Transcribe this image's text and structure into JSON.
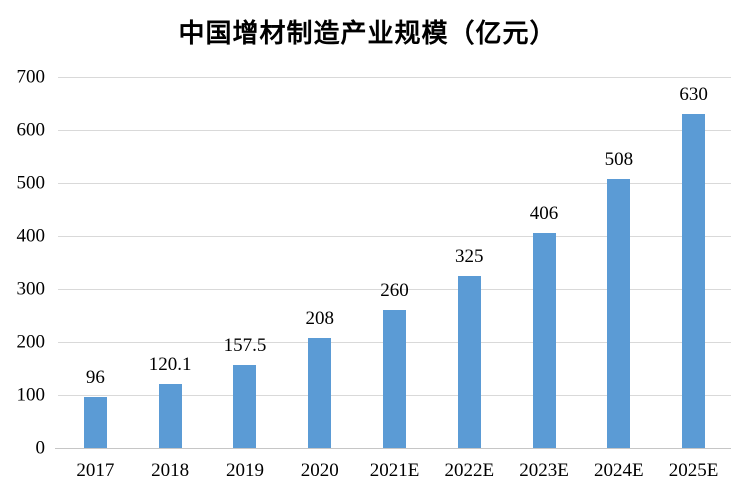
{
  "chart_data": {
    "type": "bar",
    "title": "中国增材制造产业规模（亿元）",
    "categories": [
      "2017",
      "2018",
      "2019",
      "2020",
      "2021E",
      "2022E",
      "2023E",
      "2024E",
      "2025E"
    ],
    "values": [
      96,
      120.1,
      157.5,
      208,
      260,
      325,
      406,
      508,
      630
    ],
    "value_labels": [
      "96",
      "120.1",
      "157.5",
      "208",
      "260",
      "325",
      "406",
      "508",
      "630"
    ],
    "xlabel": "",
    "ylabel": "",
    "ylim": [
      0,
      700
    ],
    "yticks": [
      0,
      100,
      200,
      300,
      400,
      500,
      600,
      700
    ],
    "grid": "horizontal",
    "legend_position": "none",
    "bar_color": "#5B9BD5",
    "gridline_color": "#D9D9D9",
    "axis_line_color": "#C6C6C6",
    "text_color": "#000000",
    "background": "#FFFFFF"
  }
}
